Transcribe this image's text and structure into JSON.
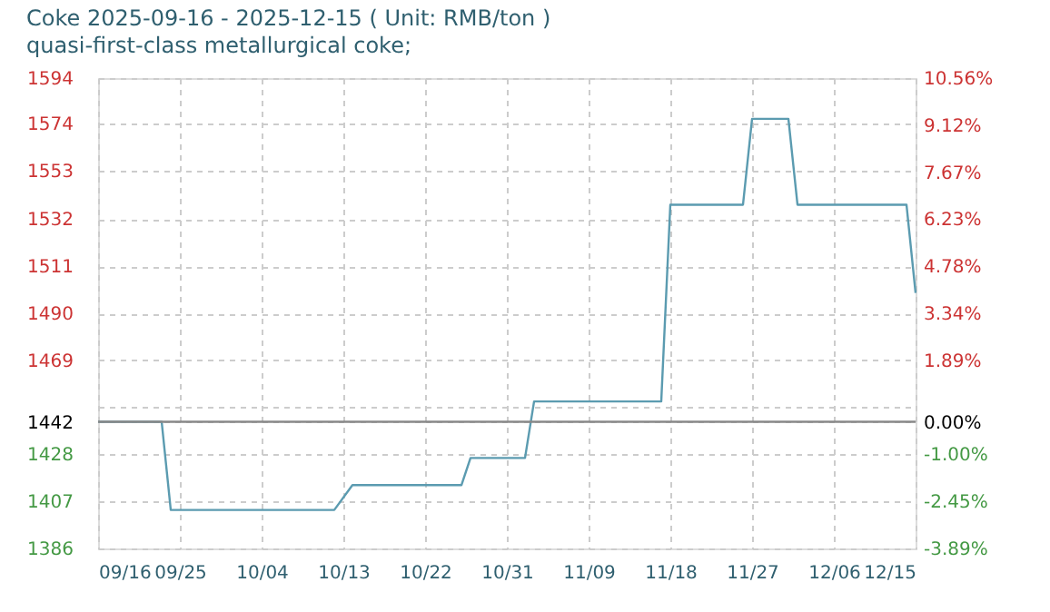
{
  "chart_data": {
    "type": "line",
    "title": "Coke 2025-09-16 - 2025-12-15    ( Unit: RMB/ton )",
    "subtitle": "quasi-first-class metallurgical coke;",
    "x": [
      "2025-09-16",
      "2025-09-23",
      "2025-09-24",
      "2025-10-12",
      "2025-10-14",
      "2025-10-26",
      "2025-10-27",
      "2025-11-02",
      "2025-11-03",
      "2025-11-17",
      "2025-11-18",
      "2025-11-26",
      "2025-11-27",
      "2025-12-01",
      "2025-12-02",
      "2025-12-14",
      "2025-12-15"
    ],
    "series": [
      {
        "color": "#5b9bb0",
        "values": [
          1442,
          1442,
          1403,
          1403,
          1414,
          1414,
          1426,
          1426,
          1451,
          1451,
          1538,
          1538,
          1576,
          1576,
          1538,
          1538,
          1499
        ]
      }
    ],
    "xlim": [
      "2025-09-16",
      "2025-12-15"
    ],
    "xticks": [
      {
        "value": "2025-09-16",
        "label": "09/16"
      },
      {
        "value": "2025-09-25",
        "label": "09/25"
      },
      {
        "value": "2025-10-04",
        "label": "10/04"
      },
      {
        "value": "2025-10-13",
        "label": "10/13"
      },
      {
        "value": "2025-10-22",
        "label": "10/22"
      },
      {
        "value": "2025-10-31",
        "label": "10/31"
      },
      {
        "value": "2025-11-09",
        "label": "11/09"
      },
      {
        "value": "2025-11-18",
        "label": "11/18"
      },
      {
        "value": "2025-11-27",
        "label": "11/27"
      },
      {
        "value": "2025-12-06",
        "label": "12/06"
      },
      {
        "value": "2025-12-15",
        "label": "12/15"
      }
    ],
    "ylim": [
      1386,
      1594
    ],
    "yticks": [
      {
        "value": 1386,
        "label": "1386"
      },
      {
        "value": 1406.8,
        "label": "1407"
      },
      {
        "value": 1427.6,
        "label": "1428"
      },
      {
        "value": 1442,
        "label": "1442"
      },
      {
        "value": 1448.4,
        "label": null
      },
      {
        "value": 1469.2,
        "label": "1469"
      },
      {
        "value": 1490,
        "label": "1490"
      },
      {
        "value": 1510.8,
        "label": "1511"
      },
      {
        "value": 1531.6,
        "label": "1532"
      },
      {
        "value": 1553,
        "label": "1553"
      },
      {
        "value": 1574,
        "label": "1574"
      },
      {
        "value": 1594,
        "label": "1594"
      }
    ],
    "y2lim": [
      -3.89,
      10.56
    ],
    "y2ticks": [
      {
        "value": -3.89,
        "label": "-3.89%"
      },
      {
        "value": -2.445,
        "label": "-2.45%"
      },
      {
        "value": -1.0,
        "label": "-1.00%"
      },
      {
        "value": 0,
        "label": "0.00%"
      },
      {
        "value": 0.445,
        "label": null
      },
      {
        "value": 1.89,
        "label": "1.89%"
      },
      {
        "value": 3.335,
        "label": "3.34%"
      },
      {
        "value": 4.78,
        "label": "4.78%"
      },
      {
        "value": 6.225,
        "label": "6.23%"
      },
      {
        "value": 7.67,
        "label": "7.67%"
      },
      {
        "value": 9.115,
        "label": "9.12%"
      },
      {
        "value": 10.56,
        "label": "10.56%"
      }
    ],
    "ref_lines": [
      {
        "axis": "y2",
        "value": 0,
        "color": "#888888"
      }
    ],
    "grid": true,
    "marker": "none",
    "line_style": "solid"
  }
}
